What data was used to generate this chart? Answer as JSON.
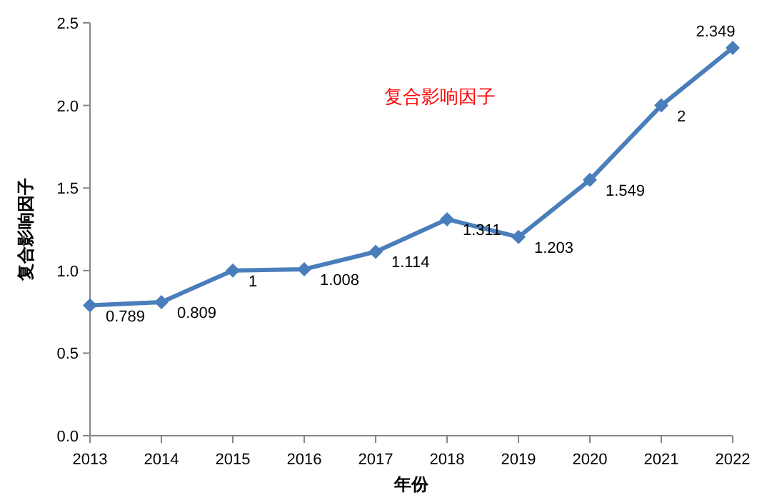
{
  "chart_data": {
    "type": "line",
    "title": "复合影响因子",
    "xlabel": "年份",
    "ylabel": "复合影响因子",
    "categories": [
      "2013",
      "2014",
      "2015",
      "2016",
      "2017",
      "2018",
      "2019",
      "2020",
      "2021",
      "2022"
    ],
    "series": [
      {
        "color": "#4a7ebb",
        "values": [
          0.789,
          0.809,
          1,
          1.008,
          1.114,
          1.311,
          1.203,
          1.549,
          2,
          2.349
        ]
      }
    ],
    "ylim": [
      0,
      2.5
    ],
    "yticks": [
      {
        "value": 0,
        "label": "0.0"
      },
      {
        "value": 0.5,
        "label": "0.5"
      },
      {
        "value": 1,
        "label": "1.0"
      },
      {
        "value": 1.5,
        "label": "1.5"
      },
      {
        "value": 2,
        "label": "2.0"
      },
      {
        "value": 2.5,
        "label": "2.5"
      }
    ],
    "data_labels": true,
    "marker": "diamond",
    "line_style": "solid",
    "grid": false
  }
}
